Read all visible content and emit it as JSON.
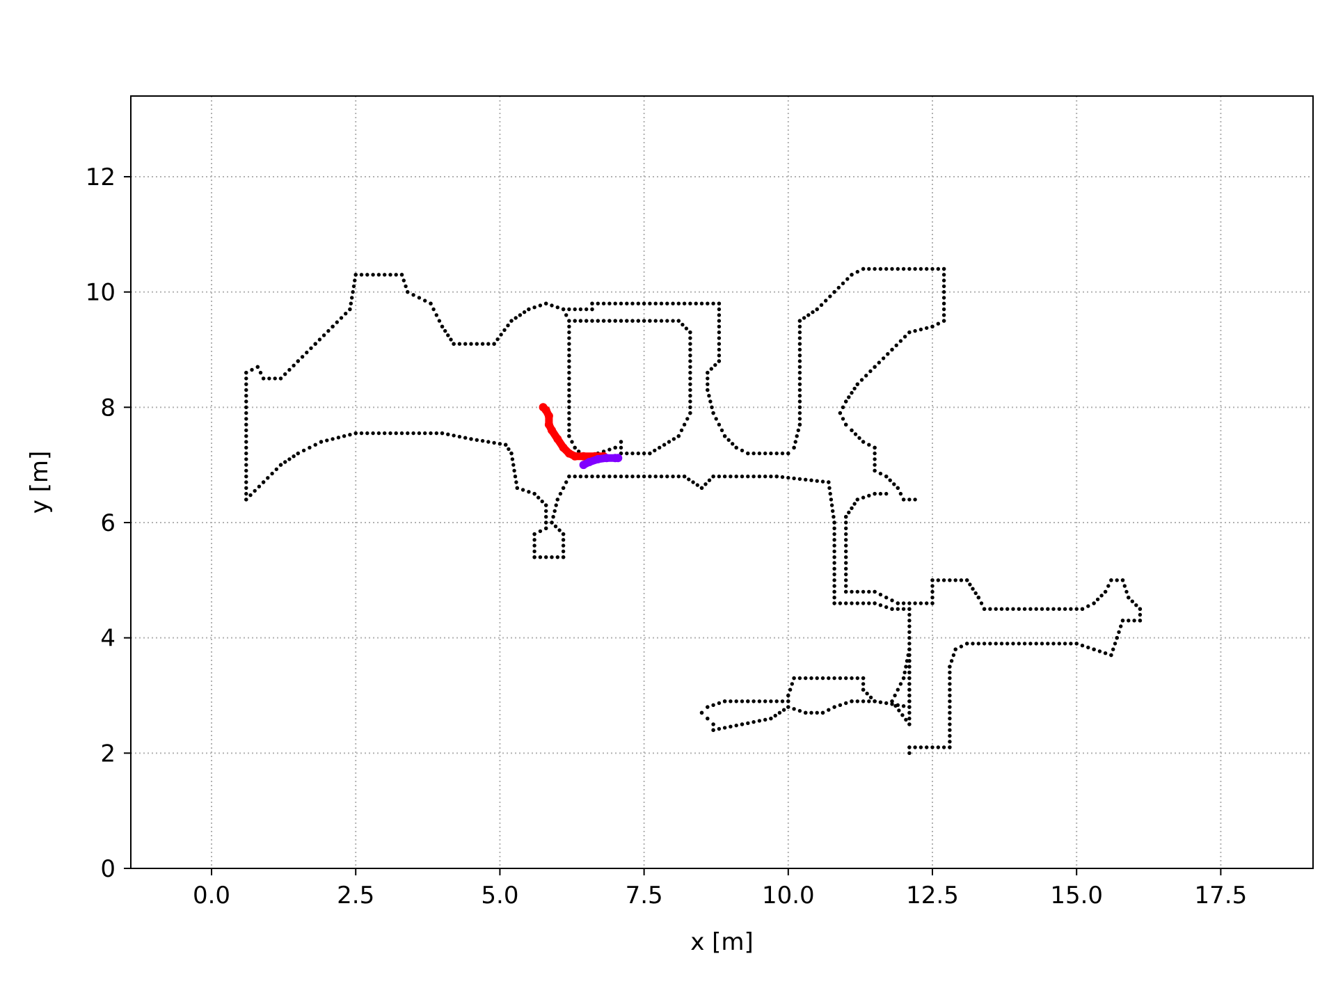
{
  "chart_data": {
    "type": "scatter",
    "title": "",
    "xlabel": "x [m]",
    "ylabel": "y [m]",
    "xlim": [
      -1.4,
      19.1
    ],
    "ylim": [
      0,
      13.4
    ],
    "x_ticks": [
      0.0,
      2.5,
      5.0,
      7.5,
      10.0,
      12.5,
      15.0,
      17.5
    ],
    "x_tick_labels": [
      "0.0",
      "2.5",
      "5.0",
      "7.5",
      "10.0",
      "12.5",
      "15.0",
      "17.5"
    ],
    "y_ticks": [
      0,
      2,
      4,
      6,
      8,
      10,
      12
    ],
    "y_tick_labels": [
      "0",
      "2",
      "4",
      "6",
      "8",
      "10",
      "12"
    ],
    "grid": true,
    "grid_style": "dotted",
    "colors": {
      "obstacles": "#000000",
      "path_a": "#ff0000",
      "path_b": "#8000ff",
      "grid": "#b0b0b0"
    },
    "series": [
      {
        "role": "obstacle-boundary",
        "color": "#000000",
        "marker": "dot",
        "polylines": [
          [
            [
              0.6,
              6.4
            ],
            [
              0.6,
              8.6
            ],
            [
              0.8,
              8.7
            ],
            [
              0.9,
              8.5
            ],
            [
              1.2,
              8.5
            ],
            [
              1.5,
              8.8
            ],
            [
              1.8,
              9.1
            ],
            [
              2.1,
              9.4
            ],
            [
              2.4,
              9.7
            ],
            [
              2.5,
              10.3
            ],
            [
              3.3,
              10.3
            ],
            [
              3.4,
              10.0
            ],
            [
              3.8,
              9.8
            ],
            [
              4.0,
              9.4
            ],
            [
              4.2,
              9.1
            ],
            [
              4.9,
              9.1
            ],
            [
              5.2,
              9.5
            ],
            [
              5.5,
              9.7
            ],
            [
              5.8,
              9.8
            ],
            [
              6.1,
              9.7
            ]
          ],
          [
            [
              0.6,
              6.4
            ],
            [
              0.9,
              6.7
            ],
            [
              1.2,
              7.0
            ],
            [
              1.5,
              7.2
            ],
            [
              1.9,
              7.4
            ],
            [
              2.5,
              7.55
            ],
            [
              4.0,
              7.55
            ],
            [
              4.5,
              7.45
            ],
            [
              5.1,
              7.35
            ],
            [
              5.2,
              7.2
            ],
            [
              5.3,
              6.6
            ],
            [
              5.6,
              6.5
            ],
            [
              5.8,
              6.3
            ],
            [
              5.8,
              5.9
            ],
            [
              5.6,
              5.8
            ],
            [
              5.6,
              5.4
            ],
            [
              6.1,
              5.4
            ],
            [
              6.1,
              5.8
            ],
            [
              5.9,
              6.0
            ],
            [
              6.0,
              6.4
            ],
            [
              6.1,
              6.6
            ],
            [
              6.2,
              6.8
            ],
            [
              8.2,
              6.8
            ],
            [
              8.5,
              6.6
            ],
            [
              8.7,
              6.8
            ],
            [
              9.8,
              6.8
            ],
            [
              10.7,
              6.7
            ],
            [
              10.8,
              6.0
            ],
            [
              10.8,
              4.8
            ],
            [
              10.8,
              4.6
            ],
            [
              11.5,
              4.6
            ],
            [
              11.8,
              4.5
            ],
            [
              12.1,
              4.5
            ],
            [
              12.1,
              2.5
            ],
            [
              11.8,
              2.9
            ],
            [
              12.0,
              3.3
            ],
            [
              12.1,
              3.8
            ]
          ],
          [
            [
              6.1,
              9.7
            ],
            [
              6.6,
              9.7
            ],
            [
              6.6,
              9.8
            ],
            [
              8.8,
              9.8
            ],
            [
              8.8,
              8.8
            ],
            [
              8.6,
              8.6
            ],
            [
              8.6,
              8.3
            ],
            [
              8.7,
              7.9
            ],
            [
              8.9,
              7.5
            ],
            [
              9.1,
              7.3
            ],
            [
              9.3,
              7.2
            ],
            [
              10.0,
              7.2
            ],
            [
              10.1,
              7.3
            ],
            [
              10.2,
              7.7
            ],
            [
              10.2,
              9.5
            ],
            [
              10.5,
              9.7
            ],
            [
              10.8,
              10.0
            ],
            [
              11.1,
              10.3
            ],
            [
              11.3,
              10.4
            ],
            [
              12.7,
              10.4
            ],
            [
              12.7,
              9.5
            ],
            [
              12.5,
              9.4
            ],
            [
              12.1,
              9.3
            ],
            [
              11.8,
              9.0
            ],
            [
              11.5,
              8.7
            ],
            [
              11.2,
              8.4
            ],
            [
              11.0,
              8.1
            ],
            [
              10.9,
              7.9
            ],
            [
              11.0,
              7.7
            ],
            [
              11.1,
              7.6
            ],
            [
              11.3,
              7.4
            ],
            [
              11.5,
              7.3
            ],
            [
              11.5,
              6.9
            ],
            [
              11.7,
              6.8
            ],
            [
              11.9,
              6.6
            ],
            [
              12.0,
              6.4
            ],
            [
              12.2,
              6.4
            ]
          ],
          [
            [
              6.1,
              9.7
            ],
            [
              6.2,
              9.5
            ],
            [
              6.2,
              7.5
            ],
            [
              6.3,
              7.3
            ],
            [
              6.5,
              7.1
            ],
            [
              6.7,
              7.2
            ],
            [
              7.0,
              7.3
            ],
            [
              7.1,
              7.4
            ],
            [
              7.1,
              7.2
            ],
            [
              7.6,
              7.2
            ],
            [
              8.1,
              7.5
            ],
            [
              8.3,
              7.9
            ],
            [
              8.3,
              9.3
            ],
            [
              8.1,
              9.5
            ],
            [
              6.3,
              9.5
            ]
          ],
          [
            [
              6.3,
              9.5
            ],
            [
              7.6,
              9.5
            ]
          ],
          [
            [
              11.7,
              6.5
            ],
            [
              11.5,
              6.5
            ],
            [
              11.2,
              6.4
            ],
            [
              11.0,
              6.1
            ],
            [
              11.0,
              4.8
            ],
            [
              11.5,
              4.8
            ],
            [
              11.9,
              4.6
            ],
            [
              12.5,
              4.6
            ],
            [
              12.5,
              5.0
            ],
            [
              13.1,
              5.0
            ],
            [
              13.3,
              4.7
            ],
            [
              13.4,
              4.5
            ],
            [
              15.1,
              4.5
            ],
            [
              15.3,
              4.6
            ],
            [
              15.5,
              4.8
            ],
            [
              15.6,
              5.0
            ],
            [
              15.8,
              5.0
            ],
            [
              15.9,
              4.7
            ],
            [
              16.1,
              4.5
            ],
            [
              16.1,
              4.3
            ],
            [
              15.8,
              4.3
            ],
            [
              15.7,
              4.0
            ],
            [
              15.6,
              3.7
            ],
            [
              15.3,
              3.8
            ],
            [
              15.0,
              3.9
            ],
            [
              13.1,
              3.9
            ],
            [
              12.9,
              3.8
            ],
            [
              12.8,
              3.5
            ],
            [
              12.8,
              2.1
            ],
            [
              12.1,
              2.1
            ],
            [
              12.1,
              2.0
            ]
          ],
          [
            [
              12.1,
              3.8
            ],
            [
              12.1,
              2.8
            ],
            [
              11.5,
              2.9
            ],
            [
              11.3,
              3.1
            ],
            [
              11.3,
              3.3
            ],
            [
              10.1,
              3.3
            ],
            [
              10.0,
              3.0
            ],
            [
              10.0,
              2.9
            ],
            [
              9.3,
              2.9
            ],
            [
              8.9,
              2.9
            ],
            [
              8.6,
              2.8
            ],
            [
              8.5,
              2.7
            ],
            [
              8.6,
              2.6
            ],
            [
              8.7,
              2.5
            ],
            [
              8.7,
              2.4
            ],
            [
              9.2,
              2.5
            ],
            [
              9.7,
              2.6
            ],
            [
              10.0,
              2.8
            ],
            [
              10.3,
              2.7
            ],
            [
              10.6,
              2.7
            ],
            [
              10.8,
              2.8
            ],
            [
              11.1,
              2.9
            ],
            [
              11.5,
              2.9
            ]
          ]
        ]
      },
      {
        "role": "path-a",
        "color": "#ff0000",
        "points": [
          [
            5.75,
            8.0
          ],
          [
            5.8,
            7.95
          ],
          [
            5.85,
            7.85
          ],
          [
            5.85,
            7.7
          ],
          [
            5.9,
            7.6
          ],
          [
            6.0,
            7.45
          ],
          [
            6.1,
            7.3
          ],
          [
            6.2,
            7.2
          ],
          [
            6.3,
            7.15
          ],
          [
            6.45,
            7.15
          ],
          [
            6.65,
            7.15
          ],
          [
            6.8,
            7.15
          ]
        ]
      },
      {
        "role": "path-b",
        "color": "#8000ff",
        "points": [
          [
            6.45,
            7.0
          ],
          [
            6.55,
            7.05
          ],
          [
            6.7,
            7.1
          ],
          [
            6.85,
            7.12
          ],
          [
            7.0,
            7.12
          ],
          [
            7.05,
            7.12
          ]
        ]
      }
    ]
  }
}
